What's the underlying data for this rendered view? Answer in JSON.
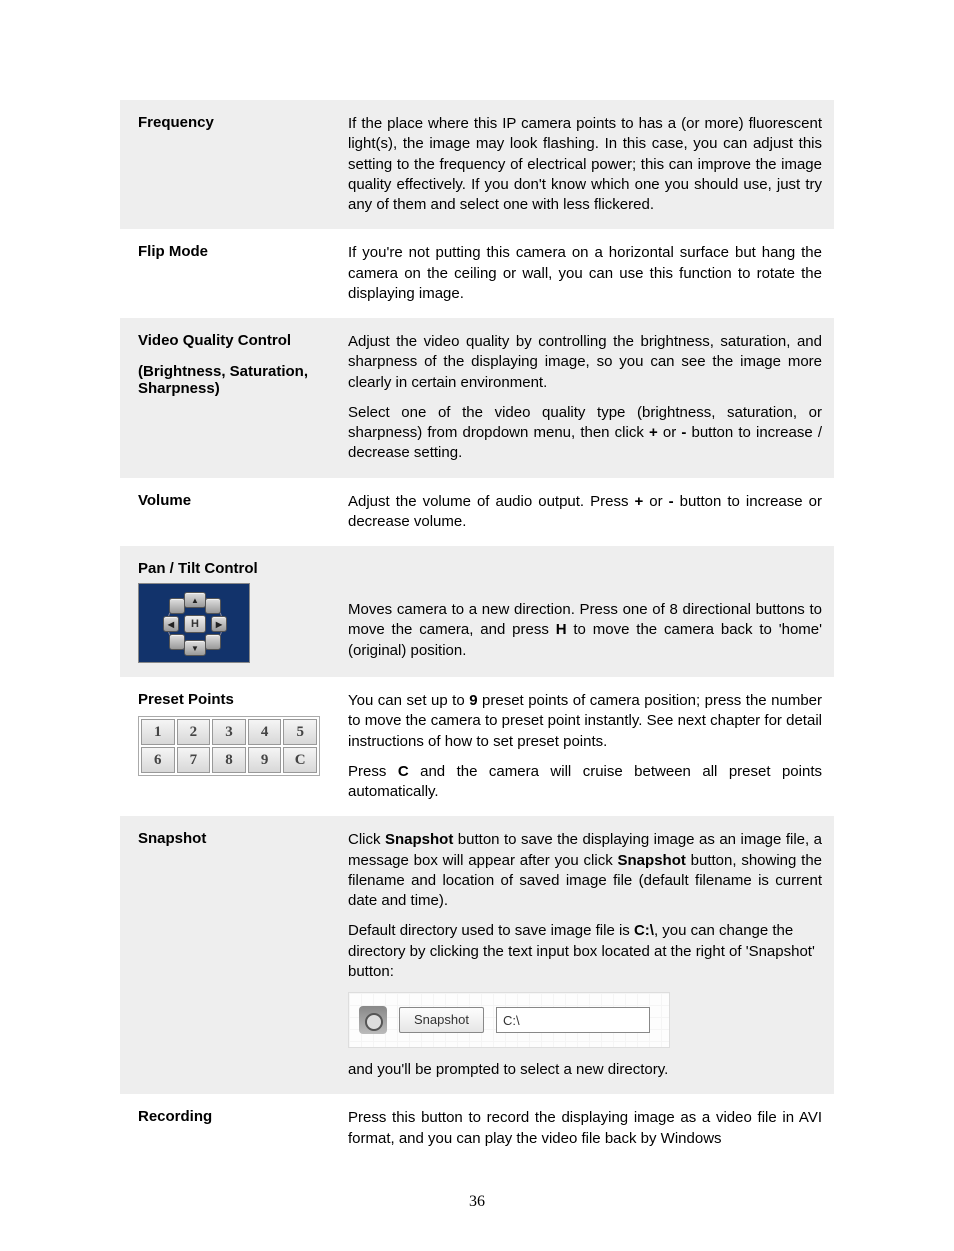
{
  "page_number": "36",
  "rows": [
    {
      "label": "Frequency",
      "paragraphs": [
        "If the place where this IP camera points to has a (or more) fluorescent light(s), the image may look flashing. In this case, you can adjust this setting to the frequency of electrical power; this can improve the image quality effectively.  If you don't know which one you should use, just try any of them and select one with less flickered."
      ]
    },
    {
      "label": "Flip Mode",
      "paragraphs": [
        "If you're not putting this camera on a horizontal surface but hang the camera on the ceiling or wall, you can use this function to rotate the displaying image."
      ]
    },
    {
      "label": "Video Quality Control\n\n(Brightness, Saturation, Sharpness)",
      "paragraphs": [
        "Adjust the video quality by controlling the brightness, saturation, and sharpness of the displaying image, so you can see the image more clearly in certain environment.",
        "Select one of the video quality type (brightness, saturation, or sharpness) from dropdown menu, then click <b>+</b> or <b>-</b> button to increase / decrease setting."
      ]
    },
    {
      "label": "Volume",
      "paragraphs": [
        "Adjust the volume of audio output. Press <b>+</b> or <b>-</b> button to increase or decrease volume."
      ]
    },
    {
      "label": "Pan / Tilt Control",
      "widget": "pantilt",
      "paragraphs": [
        "Moves camera to a new direction. Press one of 8 directional buttons to move the camera, and press <b>H</b> to move the camera back to 'home' (original) position."
      ]
    },
    {
      "label": "Preset Points",
      "widget": "preset",
      "paragraphs": [
        "You can set up to <b>9</b> preset points of camera position; press the number to move the camera to preset point instantly. See next chapter for detail instructions of how to set preset points.",
        "Press <b>C</b> and the camera will cruise between all preset points automatically."
      ]
    },
    {
      "label": "Snapshot",
      "widget": "snapshot",
      "paragraphs": [
        "Click <b>Snapshot</b> button to save the displaying image as an image file, a message box will appear after you click <b>Snapshot</b> button, showing the filename and location of saved image file (default filename is current date and time).",
        "Default directory used to save image file is <b>C:\\</b>, you can change the directory by clicking the text input box located at the right of 'Snapshot' button:",
        "and you'll be prompted to select a new directory."
      ]
    },
    {
      "label": "Recording",
      "paragraphs": [
        "Press this button to record the displaying image as a video file in AVI format, and you can play the video file back by Windows"
      ]
    }
  ],
  "preset_cells": [
    "1",
    "2",
    "3",
    "4",
    "5",
    "6",
    "7",
    "8",
    "9",
    "C"
  ],
  "pantilt_home": "H",
  "snapshot_button_label": "Snapshot",
  "snapshot_input_value": "C:\\"
}
